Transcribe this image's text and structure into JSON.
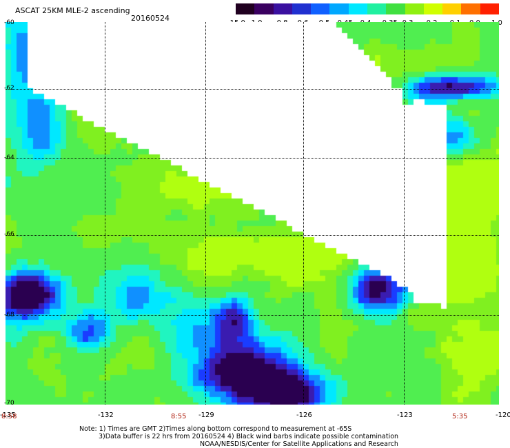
{
  "header": {
    "title": "ASCAT 25KM MLE-2 ascending",
    "date": "20160524"
  },
  "colorbar": {
    "labels": [
      "-15.0",
      "-1.0",
      "-0.8",
      "-0.6",
      "-0.5",
      "-0.45",
      "-0.4",
      "-0.35",
      "-0.3",
      "-0.2",
      "-0.1",
      "0.0",
      "1.0"
    ],
    "colors": [
      "#200020",
      "#3a0060",
      "#3a10a0",
      "#2030d0",
      "#1060ff",
      "#00a8ff",
      "#00e8ff",
      "#20f0a0",
      "#40e040",
      "#90f010",
      "#d0ff00",
      "#ffd000",
      "#ff7000",
      "#ff2000"
    ]
  },
  "map": {
    "lat_labels": [
      "-60",
      "-62",
      "-64",
      "-66",
      "-68",
      "-70"
    ],
    "lon_labels": [
      "-135",
      "-132",
      "-129",
      "-126",
      "-123",
      "-120"
    ],
    "time_labels": [
      "8:58",
      "8:55",
      "5:35"
    ],
    "lat_range": [
      -70,
      -60
    ],
    "lon_range": [
      -135,
      -120
    ],
    "value_legend": {
      "blue_dark": "#2a0050",
      "purple": "#3a1cb0",
      "blue": "#1a3cff",
      "mid_blue": "#1090ff",
      "cyan": "#00e8ff",
      "aqua": "#20f5c0",
      "green": "#50ee50",
      "light_green": "#80f020",
      "yellow_green": "#b0ff10"
    }
  },
  "notes": {
    "line1": "Note: 1) Times are GMT 2)Times along bottom correspond to measurement at -65S",
    "line2": "3)Data buffer is 22 hrs from 20160524 4) Black wind barbs indicate possible contamination",
    "line3": "NOAA/NESDIS/Center for Satellite Applications and Research"
  }
}
